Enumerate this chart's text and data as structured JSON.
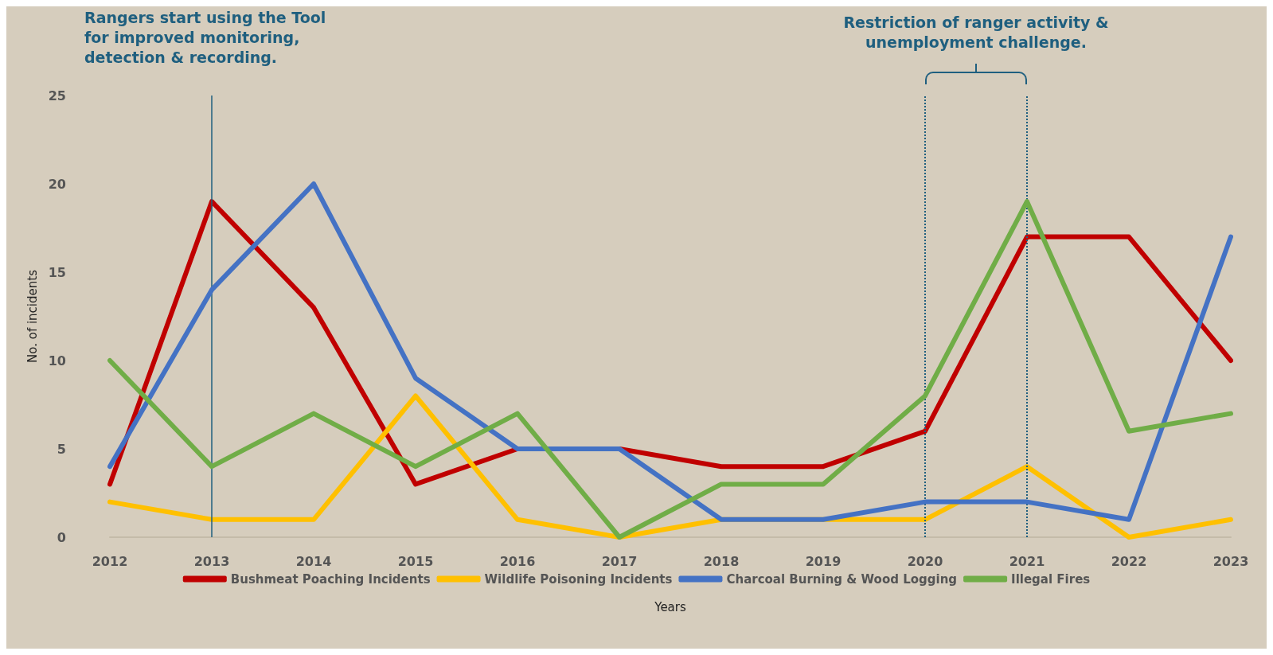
{
  "chart_data": {
    "type": "line",
    "xlabel": "Years",
    "ylabel": "No. of incidents",
    "categories": [
      "2012",
      "2013",
      "2014",
      "2015",
      "2016",
      "2017",
      "2018",
      "2019",
      "2020",
      "2021",
      "2022",
      "2023"
    ],
    "series": [
      {
        "name": "Bushmeat Poaching Incidents",
        "color": "#c00000",
        "values": [
          3,
          19,
          13,
          3,
          5,
          5,
          4,
          4,
          6,
          17,
          17,
          10
        ]
      },
      {
        "name": "Wildlife Poisoning Incidents",
        "color": "#ffc000",
        "values": [
          2,
          1,
          1,
          8,
          1,
          0,
          1,
          1,
          1,
          4,
          0,
          1
        ]
      },
      {
        "name": "Charcoal Burning & Wood Logging",
        "color": "#4472c4",
        "values": [
          4,
          14,
          20,
          9,
          5,
          5,
          1,
          1,
          2,
          2,
          1,
          17
        ]
      },
      {
        "name": "Illegal Fires",
        "color": "#70ad47",
        "values": [
          10,
          4,
          7,
          4,
          7,
          0,
          3,
          3,
          8,
          19,
          6,
          7
        ]
      }
    ],
    "ylim": [
      0,
      25
    ],
    "yticks": [
      0,
      5,
      10,
      15,
      20,
      25
    ],
    "grid": false,
    "legend": "bottom",
    "marker": "none",
    "line_style": "solid",
    "ref_lines": [
      {
        "axis": "x",
        "value": "2013",
        "label": "Rangers start using the Tool for improved monitoring, detection & recording.",
        "color": "#1f5f7f",
        "line_style": "solid"
      },
      {
        "axis": "x",
        "value": "2020",
        "label": null,
        "color": "#1f5f7f",
        "line_style": "dotted"
      },
      {
        "axis": "x",
        "value": "2021",
        "label": null,
        "color": "#1f5f7f",
        "line_style": "dotted"
      }
    ],
    "annotations": [
      "Restriction of ranger activity & unemployment challenge."
    ]
  }
}
